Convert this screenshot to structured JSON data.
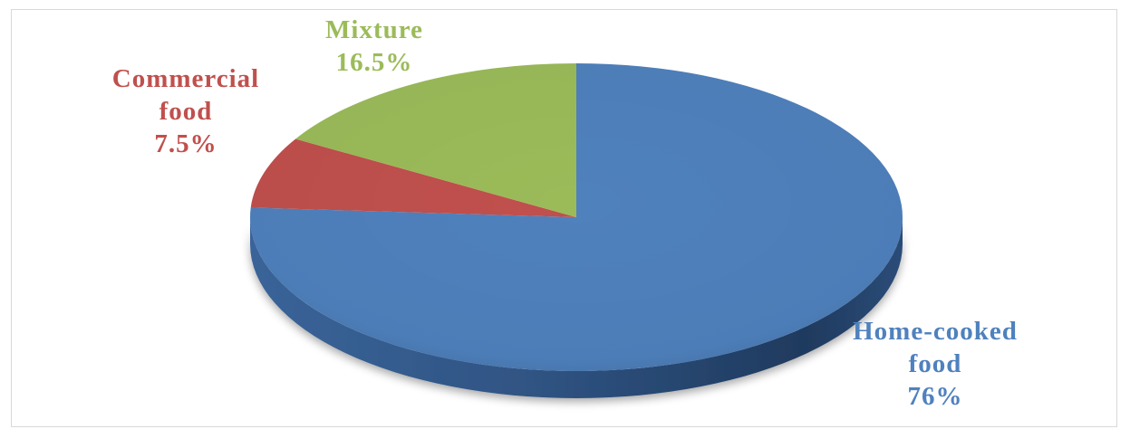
{
  "chart_data": {
    "type": "pie",
    "title": "",
    "slices": [
      {
        "category": "Home-cooked food",
        "label_lines": [
          "Home-cooked",
          "food"
        ],
        "value": 76,
        "value_label": "76%",
        "color": "#4f81bd"
      },
      {
        "category": "Commercial food",
        "label_lines": [
          "Commercial",
          "food"
        ],
        "value": 7.5,
        "value_label": "7.5%",
        "color": "#c0504d"
      },
      {
        "category": "Mixture",
        "label_lines": [
          "Mixture"
        ],
        "value": 16.5,
        "value_label": "16.5%",
        "color": "#9bbb59"
      }
    ],
    "style": "3d",
    "legend": "none",
    "data_labels": "outside"
  }
}
